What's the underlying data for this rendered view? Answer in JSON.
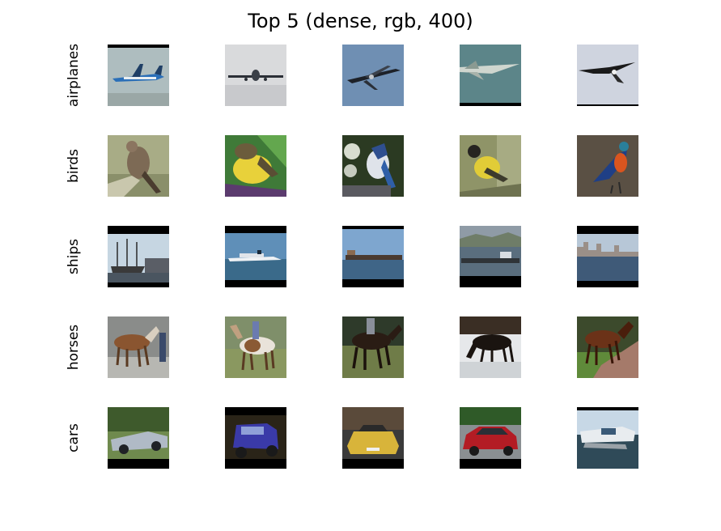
{
  "title": "Top 5 (dense, rgb, 400)",
  "rows": [
    {
      "label": "airplanes",
      "thumbnails": [
        "airplane-1-image",
        "airplane-2-image",
        "airplane-3-image",
        "airplane-4-image",
        "airplane-5-image"
      ]
    },
    {
      "label": "birds",
      "thumbnails": [
        "bird-1-image",
        "bird-2-image",
        "bird-3-image",
        "bird-4-image",
        "bird-5-image"
      ]
    },
    {
      "label": "ships",
      "thumbnails": [
        "ship-1-image",
        "ship-2-image",
        "ship-3-image",
        "ship-4-image",
        "ship-5-image"
      ]
    },
    {
      "label": "horses",
      "thumbnails": [
        "horse-1-image",
        "horse-2-image",
        "horse-3-image",
        "horse-4-image",
        "horse-5-image"
      ]
    },
    {
      "label": "cars",
      "thumbnails": [
        "car-1-image",
        "car-2-image",
        "car-3-image",
        "car-4-image",
        "car-5-image"
      ]
    }
  ]
}
